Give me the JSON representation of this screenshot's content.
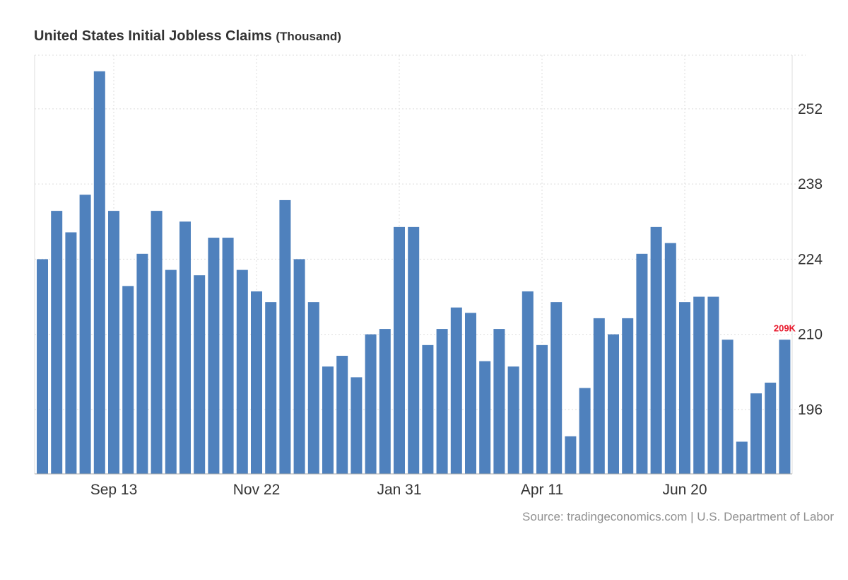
{
  "header": {
    "title": "United States Initial Jobless Claims",
    "unit": "(Thousand)"
  },
  "footer": {
    "source": "Source: tradingeconomics.com | U.S. Department of Labor"
  },
  "colors": {
    "bar": "#4f81bd",
    "latest_label": "#e8192c",
    "grid": "#dddddd",
    "axis_text": "#333333",
    "source_text": "#909090"
  },
  "chart_data": {
    "type": "bar",
    "title": "United States Initial Jobless Claims",
    "unit": "(Thousand)",
    "ylim": [
      184,
      262
    ],
    "y_ticks": [
      196,
      210,
      224,
      238,
      252
    ],
    "x_tick_labels": [
      {
        "label": "Sep 13",
        "index": 5
      },
      {
        "label": "Nov 22",
        "index": 15
      },
      {
        "label": "Jan 31",
        "index": 25
      },
      {
        "label": "Apr 11",
        "index": 35
      },
      {
        "label": "Jun 20",
        "index": 45
      }
    ],
    "grid": true,
    "y_axis_position": "right",
    "values": [
      224,
      233,
      229,
      236,
      259,
      233,
      219,
      225,
      233,
      222,
      231,
      221,
      228,
      228,
      222,
      218,
      216,
      235,
      224,
      216,
      204,
      206,
      202,
      210,
      211,
      230,
      230,
      208,
      211,
      215,
      214,
      205,
      211,
      204,
      218,
      208,
      216,
      191,
      200,
      213,
      210,
      213,
      225,
      230,
      227,
      216,
      217,
      217,
      209,
      190,
      199,
      201,
      209
    ],
    "latest_label": "209K"
  }
}
